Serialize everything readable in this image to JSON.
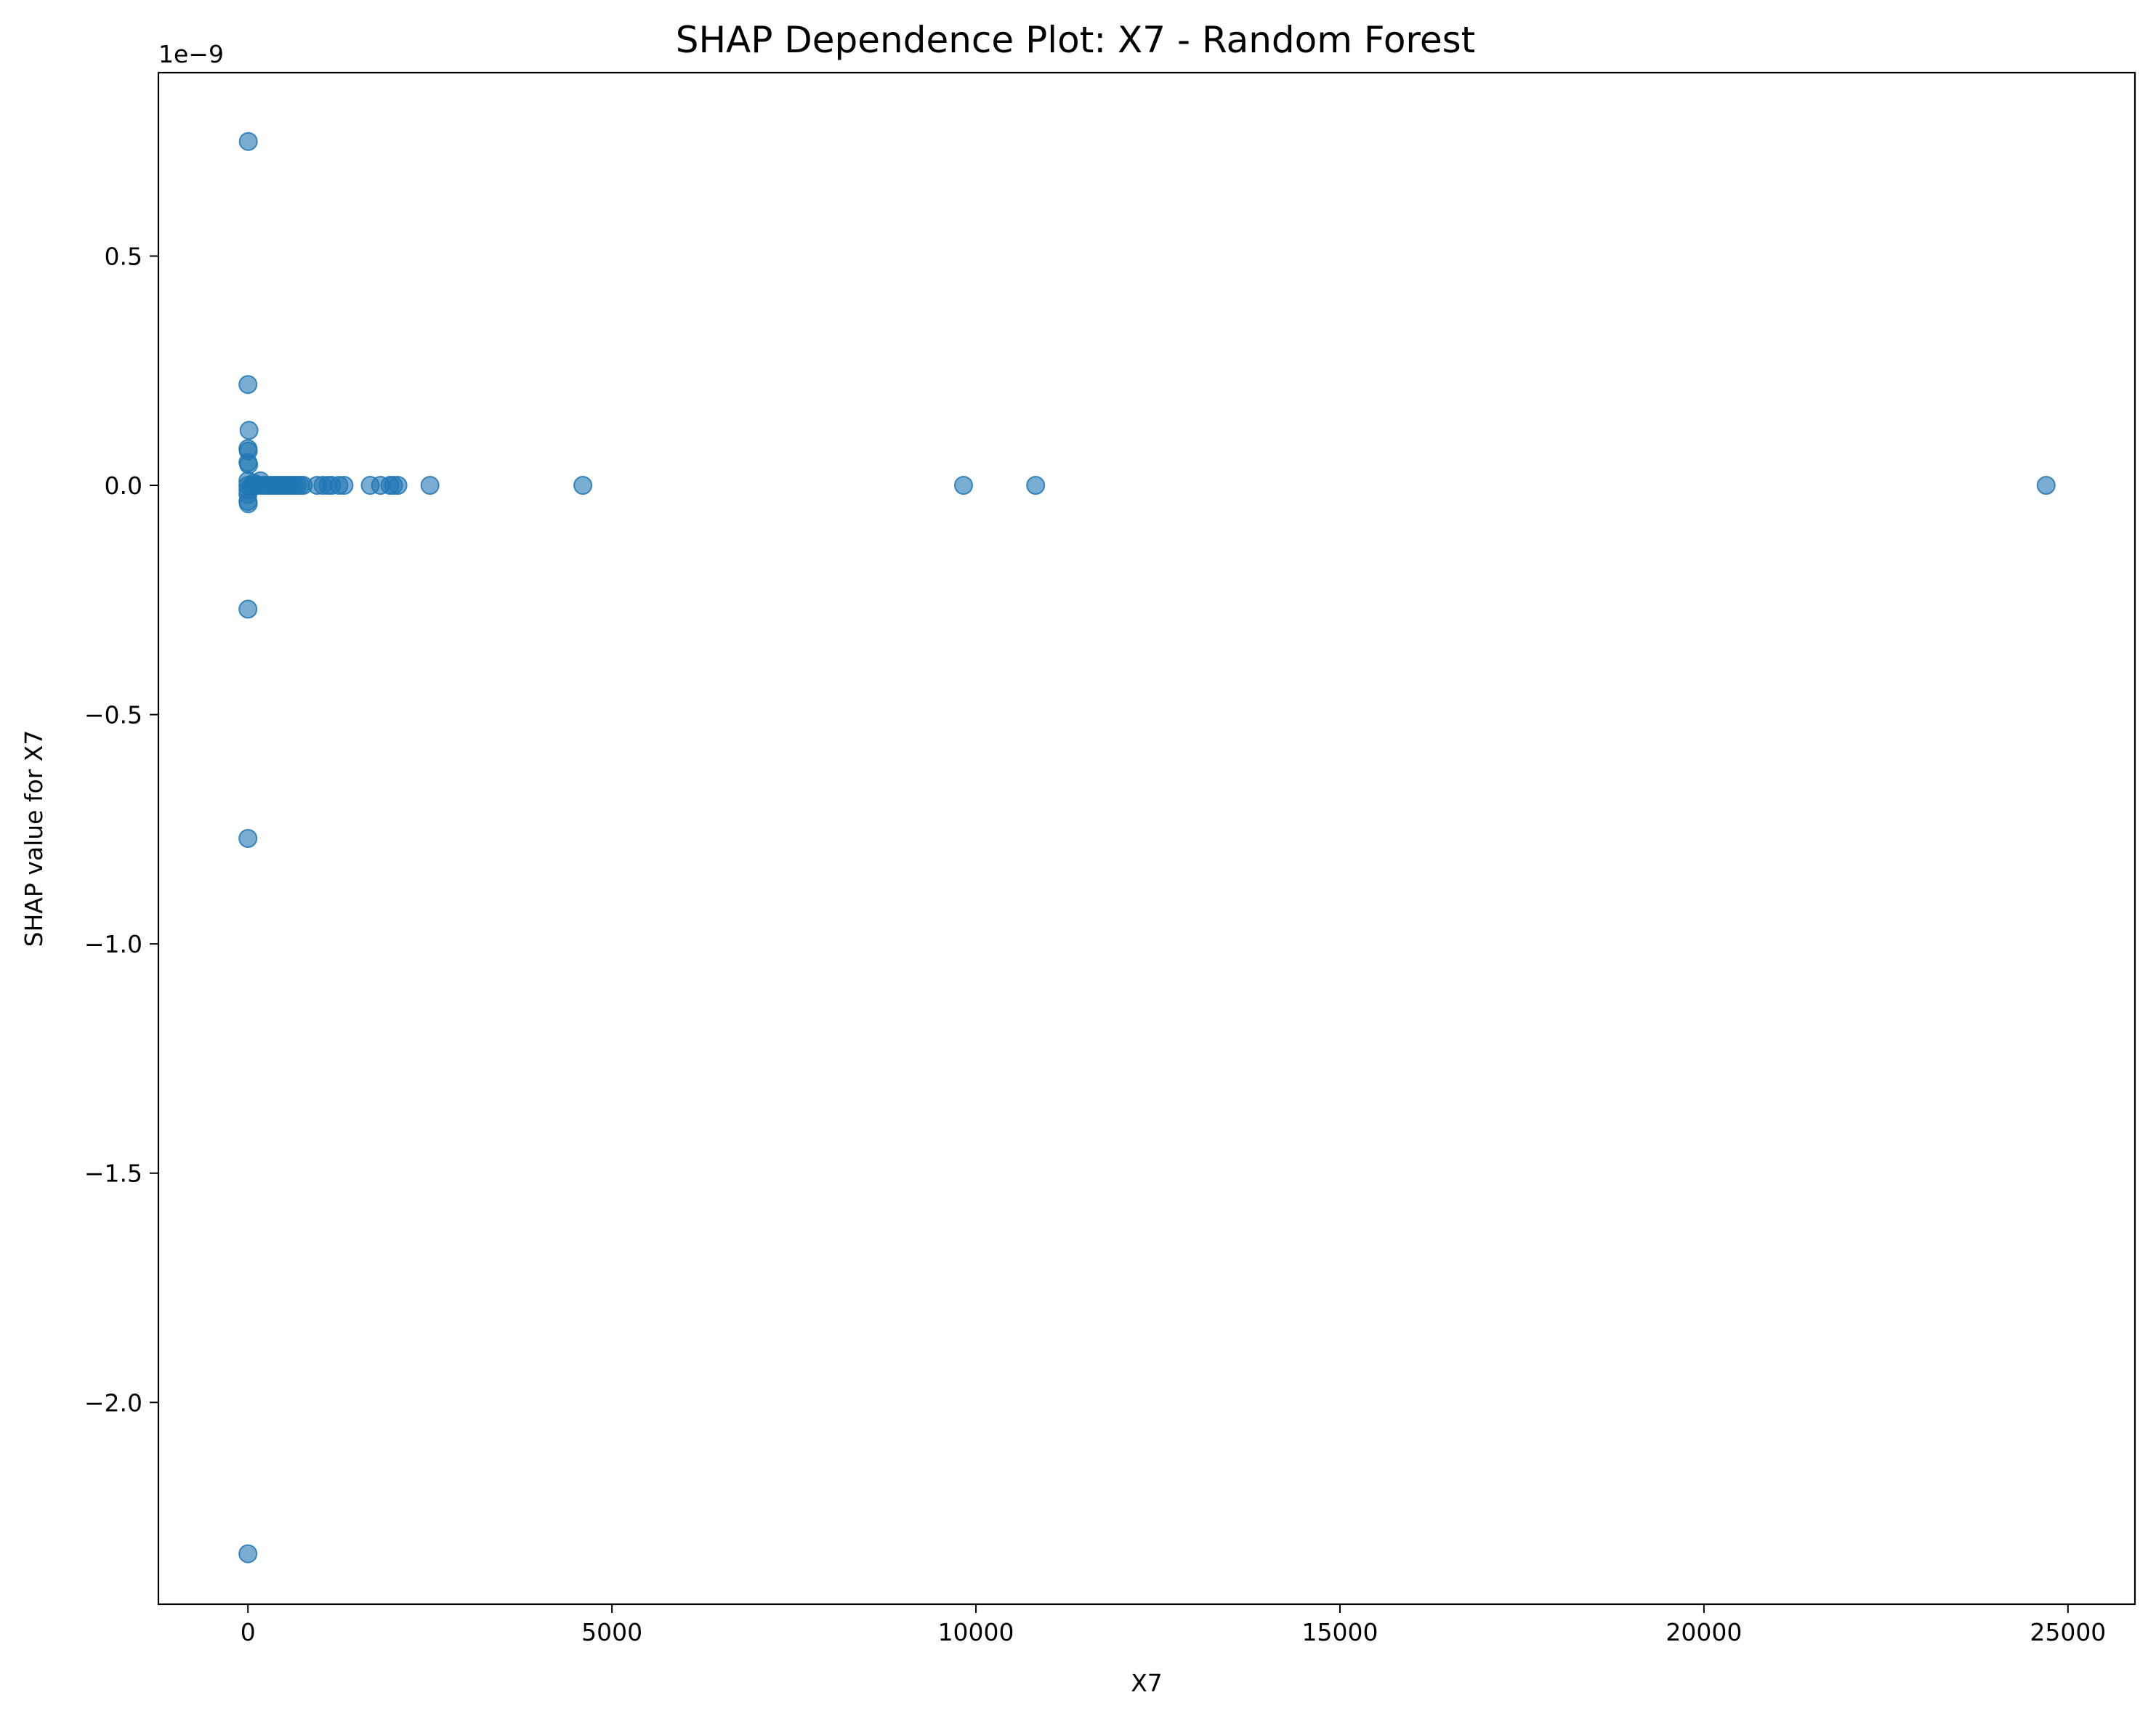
{
  "chart_data": {
    "type": "scatter",
    "title": "SHAP Dependence Plot: X7 - Random Forest",
    "xlabel": "X7",
    "ylabel": "SHAP value for X7",
    "y_offset_label": "1e−9",
    "xlim": [
      -1230,
      25920
    ],
    "ylim": [
      -2.44,
      0.9
    ],
    "y_unit_multiplier": 1e-09,
    "x_ticks": [
      0,
      5000,
      10000,
      15000,
      20000,
      25000
    ],
    "x_tick_labels": [
      "0",
      "5000",
      "10000",
      "15000",
      "20000",
      "25000"
    ],
    "y_ticks": [
      0.5,
      0.0,
      -0.5,
      -1.0,
      -1.5,
      -2.0
    ],
    "y_tick_labels": [
      "0.5",
      "0.0",
      "−0.5",
      "−1.0",
      "−1.5",
      "−2.0"
    ],
    "grid": false,
    "legend": "none",
    "marker_color": "#1f77b4",
    "marker_alpha": 0.6,
    "series": [
      {
        "points": [
          {
            "x": 5,
            "y": 0.75
          },
          {
            "x": 0,
            "y": 0.22
          },
          {
            "x": 15,
            "y": 0.12
          },
          {
            "x": 0,
            "y": 0.08
          },
          {
            "x": 5,
            "y": 0.075
          },
          {
            "x": 0,
            "y": 0.05
          },
          {
            "x": 10,
            "y": 0.045
          },
          {
            "x": 0,
            "y": 0.01
          },
          {
            "x": 0,
            "y": 0.0
          },
          {
            "x": 0,
            "y": -0.01
          },
          {
            "x": 0,
            "y": -0.02
          },
          {
            "x": 0,
            "y": -0.035
          },
          {
            "x": 5,
            "y": -0.04
          },
          {
            "x": 0,
            "y": -0.27
          },
          {
            "x": 0,
            "y": -0.77
          },
          {
            "x": 0,
            "y": -2.33
          },
          {
            "x": 50,
            "y": 0.0
          },
          {
            "x": 80,
            "y": 0.005
          },
          {
            "x": 100,
            "y": 0.0
          },
          {
            "x": 140,
            "y": 0.0
          },
          {
            "x": 170,
            "y": 0.01
          },
          {
            "x": 200,
            "y": 0.0
          },
          {
            "x": 240,
            "y": 0.0
          },
          {
            "x": 280,
            "y": 0.0
          },
          {
            "x": 320,
            "y": 0.0
          },
          {
            "x": 360,
            "y": 0.0
          },
          {
            "x": 400,
            "y": 0.0
          },
          {
            "x": 440,
            "y": 0.0
          },
          {
            "x": 480,
            "y": 0.0
          },
          {
            "x": 520,
            "y": 0.0
          },
          {
            "x": 560,
            "y": 0.0
          },
          {
            "x": 600,
            "y": 0.0
          },
          {
            "x": 640,
            "y": 0.0
          },
          {
            "x": 680,
            "y": 0.0
          },
          {
            "x": 720,
            "y": 0.0
          },
          {
            "x": 760,
            "y": 0.0
          },
          {
            "x": 950,
            "y": 0.0
          },
          {
            "x": 1030,
            "y": 0.0
          },
          {
            "x": 1100,
            "y": 0.0
          },
          {
            "x": 1150,
            "y": 0.0
          },
          {
            "x": 1250,
            "y": 0.0
          },
          {
            "x": 1320,
            "y": 0.0
          },
          {
            "x": 1680,
            "y": 0.0
          },
          {
            "x": 1820,
            "y": 0.0
          },
          {
            "x": 1950,
            "y": 0.0
          },
          {
            "x": 2000,
            "y": 0.0
          },
          {
            "x": 2060,
            "y": 0.0
          },
          {
            "x": 2500,
            "y": 0.0
          },
          {
            "x": 4600,
            "y": 0.0
          },
          {
            "x": 9830,
            "y": 0.0
          },
          {
            "x": 10820,
            "y": 0.0
          },
          {
            "x": 24700,
            "y": 0.0
          }
        ]
      }
    ]
  }
}
